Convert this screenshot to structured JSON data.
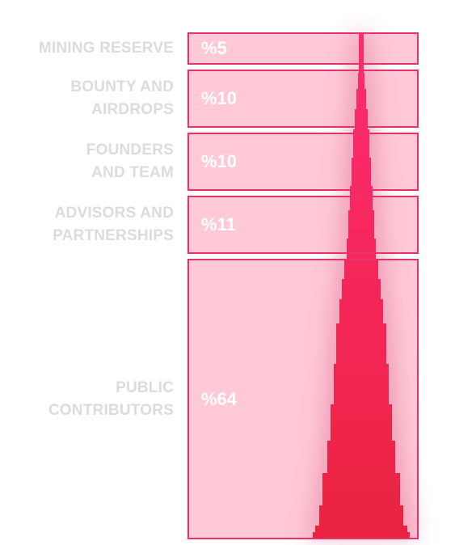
{
  "colors": {
    "frame": "#e8306a",
    "panel": "#ffc9d8",
    "tower_top": "#ff2a72",
    "tower_bottom": "#ea2340",
    "label": "#dcdcdc",
    "value": "#ffffff"
  },
  "chart_data": {
    "type": "bar",
    "categories": [
      "MINING RESERVE",
      "BOUNTY AND\nAIRDROPS",
      "FOUNDERS\nAND TEAM",
      "ADVISORS AND\nPARTNERSHIPS",
      "PUBLIC\nCONTRIBUTORS"
    ],
    "values": [
      5,
      10,
      10,
      11,
      64
    ],
    "value_labels": [
      "%5",
      "%10",
      "%10",
      "%11",
      "%64"
    ],
    "unit": "%",
    "orientation": "stacked-vertical",
    "legend": "none",
    "grid": false
  }
}
